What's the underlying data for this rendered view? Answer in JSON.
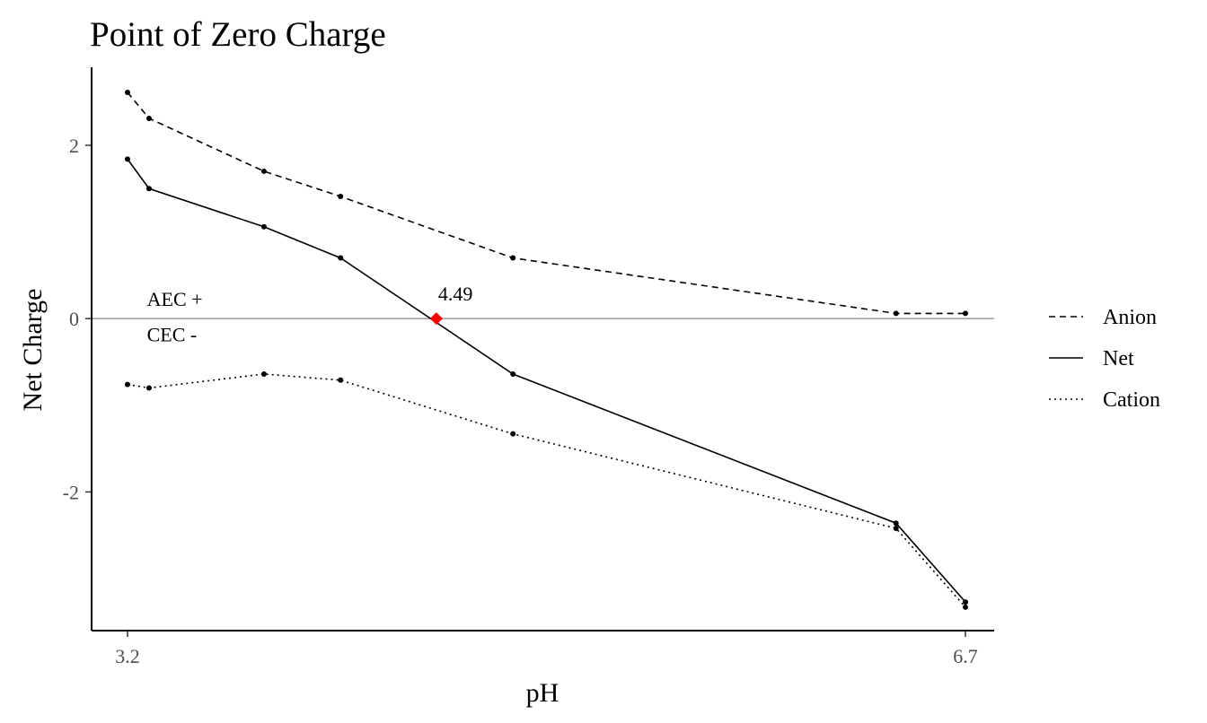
{
  "chart_data": {
    "type": "line",
    "title": "Point of Zero Charge",
    "xlabel": "pH",
    "ylabel": "Net Charge",
    "xlim": [
      3.05,
      6.82
    ],
    "ylim": [
      -3.6,
      2.9
    ],
    "x_ticks": [
      3.2,
      6.7
    ],
    "x_tick_labels": [
      "3.2",
      "6.7"
    ],
    "y_ticks": [
      -2,
      0,
      2
    ],
    "y_tick_labels": [
      "-2",
      "0",
      "2"
    ],
    "grid": false,
    "legend_position": "right",
    "x": [
      3.2,
      3.29,
      3.77,
      4.09,
      4.81,
      6.41,
      6.7
    ],
    "series": [
      {
        "name": "Anion",
        "dash": "dashed",
        "values": [
          2.61,
          2.31,
          1.7,
          1.41,
          0.7,
          0.06,
          0.06
        ]
      },
      {
        "name": "Net",
        "dash": "solid",
        "values": [
          1.84,
          1.5,
          1.06,
          0.7,
          -0.64,
          -2.36,
          -3.27
        ]
      },
      {
        "name": "Cation",
        "dash": "dotted",
        "values": [
          -0.76,
          -0.8,
          -0.64,
          -0.71,
          -1.33,
          -2.42,
          -3.33
        ]
      }
    ],
    "reference_line": {
      "y": 0,
      "color": "#999999"
    },
    "zero_point": {
      "x": 4.49,
      "y": 0,
      "label": "4.49",
      "color": "#ff0000"
    },
    "annotations": [
      {
        "text": "AEC +",
        "x": 3.45,
        "y": 0.18
      },
      {
        "text": "CEC -",
        "x": 3.45,
        "y": -0.23
      }
    ]
  }
}
